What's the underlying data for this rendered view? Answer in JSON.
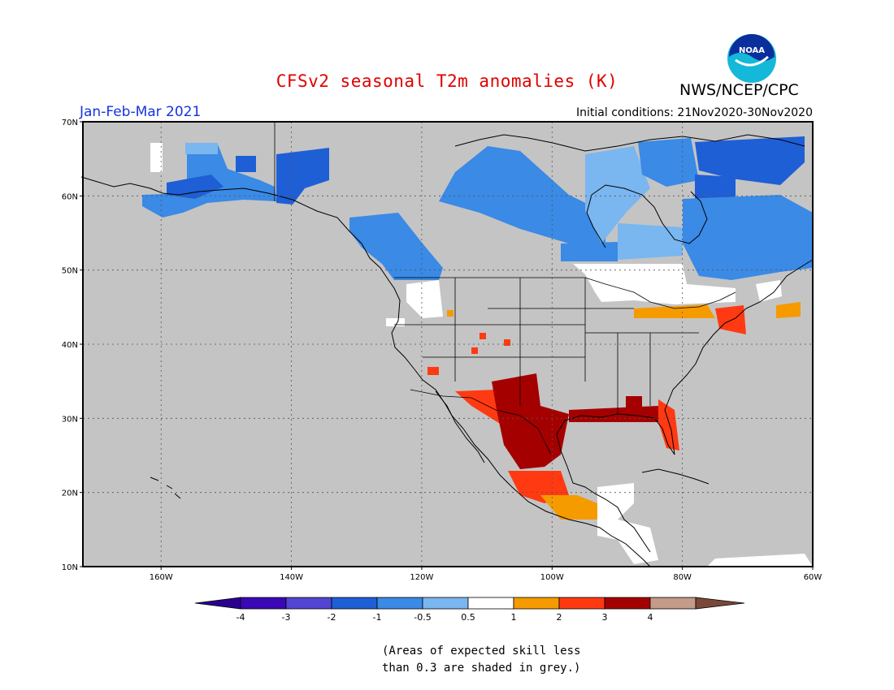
{
  "header": {
    "title": "CFSv2 seasonal T2m anomalies (K)",
    "agency": "NWS/NCEP/CPC",
    "logo_text": "NOAA",
    "period": "Jan-Feb-Mar 2021",
    "initial_conditions": "Initial conditions: 21Nov2020-30Nov2020"
  },
  "map": {
    "lon_range": [
      -172,
      -60
    ],
    "lat_range": [
      10,
      70
    ],
    "lon_ticks": [
      {
        "lon": -160,
        "label": "160W"
      },
      {
        "lon": -140,
        "label": "140W"
      },
      {
        "lon": -120,
        "label": "120W"
      },
      {
        "lon": -100,
        "label": "100W"
      },
      {
        "lon": -80,
        "label": "80W"
      },
      {
        "lon": -60,
        "label": "60W"
      }
    ],
    "lat_ticks": [
      {
        "lat": 10,
        "label": "10N"
      },
      {
        "lat": 20,
        "label": "20N"
      },
      {
        "lat": 30,
        "label": "30N"
      },
      {
        "lat": 40,
        "label": "40N"
      },
      {
        "lat": 50,
        "label": "50N"
      },
      {
        "lat": 60,
        "label": "60N"
      },
      {
        "lat": 70,
        "label": "70N"
      }
    ],
    "colors": {
      "background_grey": "#c4c4c4",
      "anomaly_-3": "#1e5fd6",
      "anomaly_-2": "#3a8ae6",
      "anomaly_-1": "#7ab6f0",
      "anomaly_0": "#ffffff",
      "anomaly_0.5": "#f59b00",
      "anomaly_1": "#ff3a12",
      "anomaly_2": "#a50000"
    }
  },
  "colorbar": {
    "bins": [
      {
        "color": "#3a08b4"
      },
      {
        "color": "#5345d2"
      },
      {
        "color": "#1e5fd6"
      },
      {
        "color": "#3a8ae6"
      },
      {
        "color": "#7ab6f0"
      },
      {
        "color": "#ffffff"
      },
      {
        "color": "#f59b00"
      },
      {
        "color": "#ff3a12"
      },
      {
        "color": "#a50000"
      },
      {
        "color": "#c49a88"
      }
    ],
    "left_arrow_color": "#2a008e",
    "right_arrow_color": "#7a4838",
    "labels": [
      "-4",
      "-3",
      "-2",
      "-1",
      "-0.5",
      "0.5",
      "1",
      "2",
      "3",
      "4"
    ]
  },
  "note": {
    "line1": "(Areas of expected skill less",
    "line2": "than 0.3 are shaded in grey.)"
  }
}
